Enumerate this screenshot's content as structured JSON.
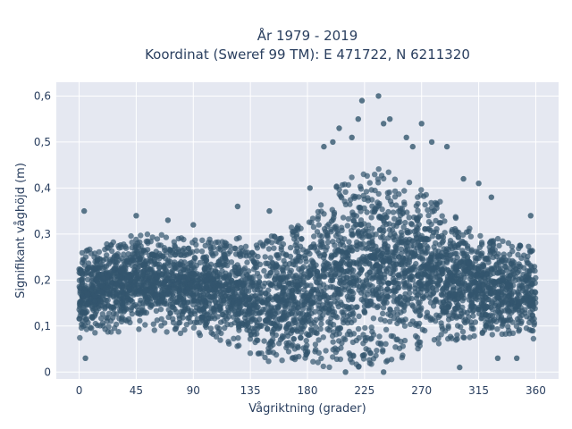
{
  "chart_data": {
    "type": "scatter",
    "title_line1": "År 1979 - 2019",
    "title_line2": "Koordinat (Sweref 99 TM): E 471722, N 6211320",
    "xlabel": "Vågriktning (grader)",
    "ylabel": "Signifikant våghöjd (m)",
    "xlim": [
      -18,
      378
    ],
    "ylim": [
      -0.015,
      0.63
    ],
    "xticks": [
      0,
      45,
      90,
      135,
      180,
      225,
      270,
      315,
      360
    ],
    "xtick_labels": [
      "0",
      "45",
      "90",
      "135",
      "180",
      "225",
      "270",
      "315",
      "360"
    ],
    "yticks": [
      0,
      0.1,
      0.2,
      0.3,
      0.4,
      0.5,
      0.6
    ],
    "ytick_labels": [
      "0",
      "0,1",
      "0,2",
      "0,3",
      "0,4",
      "0,5",
      "0,6"
    ],
    "grid": true,
    "legend": "none",
    "colors": {
      "marker": "#33566e",
      "plot_bg": "#e5e8f1",
      "text": "#2a3f5f"
    },
    "envelope": [
      {
        "x": 0,
        "low": 0.07,
        "high": 0.27
      },
      {
        "x": 20,
        "low": 0.08,
        "high": 0.28
      },
      {
        "x": 45,
        "low": 0.09,
        "high": 0.3
      },
      {
        "x": 60,
        "low": 0.09,
        "high": 0.3
      },
      {
        "x": 90,
        "low": 0.08,
        "high": 0.29
      },
      {
        "x": 120,
        "low": 0.06,
        "high": 0.29
      },
      {
        "x": 150,
        "low": 0.02,
        "high": 0.3
      },
      {
        "x": 180,
        "low": 0.02,
        "high": 0.33
      },
      {
        "x": 195,
        "low": 0.01,
        "high": 0.38
      },
      {
        "x": 210,
        "low": 0.01,
        "high": 0.43
      },
      {
        "x": 225,
        "low": 0.01,
        "high": 0.45
      },
      {
        "x": 240,
        "low": 0.02,
        "high": 0.44
      },
      {
        "x": 255,
        "low": 0.03,
        "high": 0.42
      },
      {
        "x": 270,
        "low": 0.05,
        "high": 0.4
      },
      {
        "x": 285,
        "low": 0.06,
        "high": 0.37
      },
      {
        "x": 300,
        "low": 0.07,
        "high": 0.33
      },
      {
        "x": 315,
        "low": 0.08,
        "high": 0.3
      },
      {
        "x": 330,
        "low": 0.08,
        "high": 0.29
      },
      {
        "x": 345,
        "low": 0.08,
        "high": 0.28
      },
      {
        "x": 360,
        "low": 0.07,
        "high": 0.27
      }
    ],
    "outliers": [
      {
        "x": 4,
        "y": 0.35
      },
      {
        "x": 5,
        "y": 0.03
      },
      {
        "x": 45,
        "y": 0.34
      },
      {
        "x": 70,
        "y": 0.33
      },
      {
        "x": 90,
        "y": 0.32
      },
      {
        "x": 125,
        "y": 0.36
      },
      {
        "x": 150,
        "y": 0.35
      },
      {
        "x": 182,
        "y": 0.4
      },
      {
        "x": 193,
        "y": 0.49
      },
      {
        "x": 200,
        "y": 0.5
      },
      {
        "x": 205,
        "y": 0.53
      },
      {
        "x": 215,
        "y": 0.51
      },
      {
        "x": 220,
        "y": 0.55
      },
      {
        "x": 223,
        "y": 0.59
      },
      {
        "x": 236,
        "y": 0.6
      },
      {
        "x": 240,
        "y": 0.54
      },
      {
        "x": 245,
        "y": 0.55
      },
      {
        "x": 258,
        "y": 0.51
      },
      {
        "x": 263,
        "y": 0.49
      },
      {
        "x": 270,
        "y": 0.54
      },
      {
        "x": 278,
        "y": 0.5
      },
      {
        "x": 290,
        "y": 0.49
      },
      {
        "x": 303,
        "y": 0.42
      },
      {
        "x": 315,
        "y": 0.41
      },
      {
        "x": 325,
        "y": 0.38
      },
      {
        "x": 356,
        "y": 0.34
      },
      {
        "x": 300,
        "y": 0.01
      },
      {
        "x": 210,
        "y": 0.0
      },
      {
        "x": 240,
        "y": 0.0
      },
      {
        "x": 330,
        "y": 0.03
      },
      {
        "x": 345,
        "y": 0.03
      }
    ]
  }
}
